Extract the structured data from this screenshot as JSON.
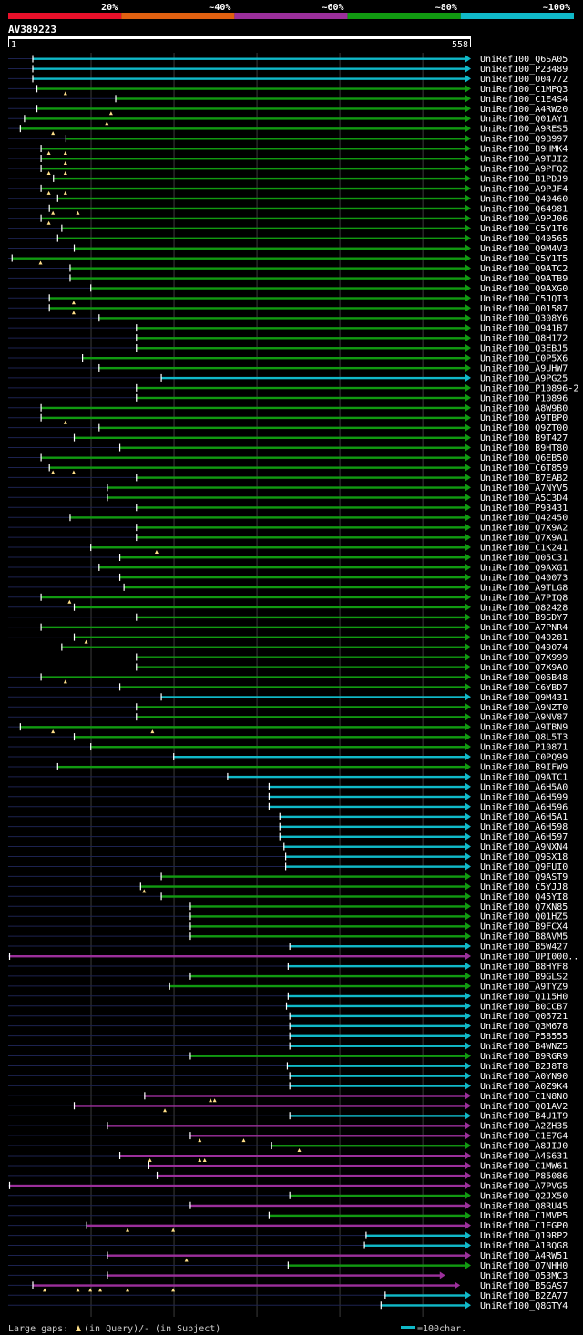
{
  "chart_data": {
    "type": "alignment-overview",
    "query_id": "AV389223",
    "query_start": "1",
    "query_end": "558",
    "query_length": 558,
    "identity_legend": [
      {
        "label": "20%",
        "color": "#e8102a"
      },
      {
        "label": "~40%",
        "color": "#e06010"
      },
      {
        "label": "~60%",
        "color": "#9b2f9b"
      },
      {
        "label": "~80%",
        "color": "#119a11"
      },
      {
        "label": "~100%",
        "color": "#10b9c8"
      }
    ],
    "footer": {
      "gaps_label": "Large gaps:",
      "query_gap_label": "(in Query)/",
      "subject_gap_label": "- (in Subject)",
      "scale_label": "=100char."
    },
    "hits": [
      {
        "id": "UniRef100_Q6SA05",
        "start": 30,
        "end": 558,
        "color": "c",
        "marks": []
      },
      {
        "id": "UniRef100_P23489",
        "start": 30,
        "end": 558,
        "color": "c",
        "marks": []
      },
      {
        "id": "UniRef100_O04772",
        "start": 30,
        "end": 558,
        "color": "c",
        "marks": []
      },
      {
        "id": "UniRef100_C1MPQ3",
        "start": 35,
        "end": 558,
        "color": "g",
        "marks": [
          70
        ]
      },
      {
        "id": "UniRef100_C1E4S4",
        "start": 130,
        "end": 558,
        "color": "g",
        "marks": []
      },
      {
        "id": "UniRef100_A4RW20",
        "start": 35,
        "end": 558,
        "color": "g",
        "marks": [
          125
        ]
      },
      {
        "id": "UniRef100_Q01AY1",
        "start": 20,
        "end": 558,
        "color": "g",
        "marks": [
          120
        ]
      },
      {
        "id": "UniRef100_A9RES5",
        "start": 15,
        "end": 558,
        "color": "g",
        "marks": [
          55
        ]
      },
      {
        "id": "UniRef100_Q9B997",
        "start": 70,
        "end": 558,
        "color": "g",
        "marks": []
      },
      {
        "id": "UniRef100_B9HMK4",
        "start": 40,
        "end": 558,
        "color": "g",
        "marks": [
          50,
          70
        ]
      },
      {
        "id": "UniRef100_A9TJI2",
        "start": 40,
        "end": 558,
        "color": "g",
        "marks": [
          70
        ]
      },
      {
        "id": "UniRef100_A9PFQ2",
        "start": 40,
        "end": 558,
        "color": "g",
        "marks": [
          50,
          70
        ]
      },
      {
        "id": "UniRef100_B1PDJ9",
        "start": 55,
        "end": 558,
        "color": "g",
        "marks": []
      },
      {
        "id": "UniRef100_A9PJF4",
        "start": 40,
        "end": 558,
        "color": "g",
        "marks": [
          50,
          70
        ]
      },
      {
        "id": "UniRef100_Q40460",
        "start": 60,
        "end": 558,
        "color": "g",
        "marks": []
      },
      {
        "id": "UniRef100_Q64981",
        "start": 50,
        "end": 558,
        "color": "g",
        "marks": [
          55,
          85
        ]
      },
      {
        "id": "UniRef100_A9PJ06",
        "start": 40,
        "end": 558,
        "color": "g",
        "marks": [
          50
        ]
      },
      {
        "id": "UniRef100_C5Y1T6",
        "start": 65,
        "end": 558,
        "color": "g",
        "marks": []
      },
      {
        "id": "UniRef100_Q40565",
        "start": 60,
        "end": 558,
        "color": "g",
        "marks": []
      },
      {
        "id": "UniRef100_Q9M4V3",
        "start": 80,
        "end": 558,
        "color": "g",
        "marks": []
      },
      {
        "id": "UniRef100_C5Y1T5",
        "start": 5,
        "end": 558,
        "color": "g",
        "marks": [
          40
        ]
      },
      {
        "id": "UniRef100_Q9ATC2",
        "start": 75,
        "end": 558,
        "color": "g",
        "marks": []
      },
      {
        "id": "UniRef100_Q9ATB9",
        "start": 75,
        "end": 558,
        "color": "g",
        "marks": []
      },
      {
        "id": "UniRef100_Q9AXG0",
        "start": 100,
        "end": 558,
        "color": "g",
        "marks": []
      },
      {
        "id": "UniRef100_C5JQI3",
        "start": 50,
        "end": 558,
        "color": "g",
        "marks": [
          80
        ]
      },
      {
        "id": "UniRef100_Q01587",
        "start": 50,
        "end": 558,
        "color": "g",
        "marks": [
          80
        ]
      },
      {
        "id": "UniRef100_Q308Y6",
        "start": 110,
        "end": 558,
        "color": "g",
        "marks": []
      },
      {
        "id": "UniRef100_Q941B7",
        "start": 155,
        "end": 558,
        "color": "g",
        "marks": []
      },
      {
        "id": "UniRef100_Q8H172",
        "start": 155,
        "end": 558,
        "color": "g",
        "marks": []
      },
      {
        "id": "UniRef100_Q3EBJ5",
        "start": 155,
        "end": 558,
        "color": "g",
        "marks": []
      },
      {
        "id": "UniRef100_C0P5X6",
        "start": 90,
        "end": 558,
        "color": "g",
        "marks": []
      },
      {
        "id": "UniRef100_A9UHW7",
        "start": 110,
        "end": 558,
        "color": "g",
        "marks": []
      },
      {
        "id": "UniRef100_A9PG25",
        "start": 185,
        "end": 558,
        "color": "c",
        "marks": []
      },
      {
        "id": "UniRef100_P10896-2",
        "start": 155,
        "end": 558,
        "color": "g",
        "marks": []
      },
      {
        "id": "UniRef100_P10896",
        "start": 155,
        "end": 558,
        "color": "g",
        "marks": []
      },
      {
        "id": "UniRef100_A8W9B0",
        "start": 40,
        "end": 558,
        "color": "g",
        "marks": []
      },
      {
        "id": "UniRef100_A9TBP0",
        "start": 40,
        "end": 558,
        "color": "g",
        "marks": [
          70
        ]
      },
      {
        "id": "UniRef100_Q9ZT00",
        "start": 110,
        "end": 558,
        "color": "g",
        "marks": []
      },
      {
        "id": "UniRef100_B9T427",
        "start": 80,
        "end": 558,
        "color": "g",
        "marks": []
      },
      {
        "id": "UniRef100_B9HT80",
        "start": 135,
        "end": 558,
        "color": "g",
        "marks": []
      },
      {
        "id": "UniRef100_Q6EB50",
        "start": 40,
        "end": 558,
        "color": "g",
        "marks": []
      },
      {
        "id": "UniRef100_C6T859",
        "start": 50,
        "end": 558,
        "color": "g",
        "marks": [
          55,
          80
        ]
      },
      {
        "id": "UniRef100_B7EAB2",
        "start": 155,
        "end": 558,
        "color": "g",
        "marks": []
      },
      {
        "id": "UniRef100_A7NYV5",
        "start": 120,
        "end": 558,
        "color": "g",
        "marks": []
      },
      {
        "id": "UniRef100_A5C3D4",
        "start": 120,
        "end": 558,
        "color": "g",
        "marks": []
      },
      {
        "id": "UniRef100_P93431",
        "start": 155,
        "end": 558,
        "color": "g",
        "marks": []
      },
      {
        "id": "UniRef100_Q42450",
        "start": 75,
        "end": 558,
        "color": "g",
        "marks": []
      },
      {
        "id": "UniRef100_Q7X9A2",
        "start": 155,
        "end": 558,
        "color": "g",
        "marks": []
      },
      {
        "id": "UniRef100_Q7X9A1",
        "start": 155,
        "end": 558,
        "color": "g",
        "marks": []
      },
      {
        "id": "UniRef100_C1K241",
        "start": 100,
        "end": 558,
        "color": "g",
        "marks": [
          180
        ]
      },
      {
        "id": "UniRef100_Q05C31",
        "start": 135,
        "end": 558,
        "color": "g",
        "marks": []
      },
      {
        "id": "UniRef100_Q9AXG1",
        "start": 110,
        "end": 558,
        "color": "g",
        "marks": []
      },
      {
        "id": "UniRef100_Q40073",
        "start": 135,
        "end": 558,
        "color": "g",
        "marks": []
      },
      {
        "id": "UniRef100_A9TLG8",
        "start": 140,
        "end": 558,
        "color": "g",
        "marks": []
      },
      {
        "id": "UniRef100_A7PIQ8",
        "start": 40,
        "end": 558,
        "color": "g",
        "marks": [
          75
        ]
      },
      {
        "id": "UniRef100_Q82428",
        "start": 80,
        "end": 558,
        "color": "g",
        "marks": []
      },
      {
        "id": "UniRef100_B9SDY7",
        "start": 155,
        "end": 558,
        "color": "g",
        "marks": []
      },
      {
        "id": "UniRef100_A7PNR4",
        "start": 40,
        "end": 558,
        "color": "g",
        "marks": []
      },
      {
        "id": "UniRef100_Q40281",
        "start": 80,
        "end": 558,
        "color": "g",
        "marks": [
          95
        ]
      },
      {
        "id": "UniRef100_Q49074",
        "start": 65,
        "end": 558,
        "color": "g",
        "marks": []
      },
      {
        "id": "UniRef100_Q7X999",
        "start": 155,
        "end": 558,
        "color": "g",
        "marks": []
      },
      {
        "id": "UniRef100_Q7X9A0",
        "start": 155,
        "end": 558,
        "color": "g",
        "marks": []
      },
      {
        "id": "UniRef100_Q06B48",
        "start": 40,
        "end": 558,
        "color": "g",
        "marks": [
          70
        ]
      },
      {
        "id": "UniRef100_C6YBD7",
        "start": 135,
        "end": 558,
        "color": "g",
        "marks": []
      },
      {
        "id": "UniRef100_Q9M431",
        "start": 185,
        "end": 558,
        "color": "c",
        "marks": []
      },
      {
        "id": "UniRef100_A9NZT0",
        "start": 155,
        "end": 558,
        "color": "g",
        "marks": []
      },
      {
        "id": "UniRef100_A9NV87",
        "start": 155,
        "end": 558,
        "color": "g",
        "marks": []
      },
      {
        "id": "UniRef100_A9TBN9",
        "start": 15,
        "end": 558,
        "color": "g",
        "marks": [
          55,
          175
        ]
      },
      {
        "id": "UniRef100_Q8L5T3",
        "start": 80,
        "end": 558,
        "color": "g",
        "marks": []
      },
      {
        "id": "UniRef100_P10871",
        "start": 100,
        "end": 558,
        "color": "g",
        "marks": []
      },
      {
        "id": "UniRef100_C0PQ99",
        "start": 200,
        "end": 558,
        "color": "c",
        "marks": []
      },
      {
        "id": "UniRef100_B9IFW9",
        "start": 60,
        "end": 558,
        "color": "g",
        "marks": []
      },
      {
        "id": "UniRef100_Q9ATC1",
        "start": 265,
        "end": 558,
        "color": "c",
        "marks": []
      },
      {
        "id": "UniRef100_A6H5A0",
        "start": 315,
        "end": 558,
        "color": "c",
        "marks": []
      },
      {
        "id": "UniRef100_A6H599",
        "start": 315,
        "end": 558,
        "color": "c",
        "marks": []
      },
      {
        "id": "UniRef100_A6H596",
        "start": 315,
        "end": 558,
        "color": "c",
        "marks": []
      },
      {
        "id": "UniRef100_A6H5A1",
        "start": 328,
        "end": 558,
        "color": "c",
        "marks": []
      },
      {
        "id": "UniRef100_A6H598",
        "start": 328,
        "end": 558,
        "color": "c",
        "marks": []
      },
      {
        "id": "UniRef100_A6H597",
        "start": 328,
        "end": 558,
        "color": "c",
        "marks": []
      },
      {
        "id": "UniRef100_A9NXN4",
        "start": 333,
        "end": 558,
        "color": "c",
        "marks": []
      },
      {
        "id": "UniRef100_Q9SX18",
        "start": 335,
        "end": 558,
        "color": "c",
        "marks": []
      },
      {
        "id": "UniRef100_Q9FUI0",
        "start": 335,
        "end": 558,
        "color": "c",
        "marks": []
      },
      {
        "id": "UniRef100_Q9AST9",
        "start": 185,
        "end": 558,
        "color": "g",
        "marks": []
      },
      {
        "id": "UniRef100_C5YJJ8",
        "start": 160,
        "end": 558,
        "color": "g",
        "marks": [
          165
        ]
      },
      {
        "id": "UniRef100_Q45YI8",
        "start": 185,
        "end": 558,
        "color": "g",
        "marks": []
      },
      {
        "id": "UniRef100_Q7XN85",
        "start": 220,
        "end": 558,
        "color": "g",
        "marks": []
      },
      {
        "id": "UniRef100_Q01HZ5",
        "start": 220,
        "end": 558,
        "color": "g",
        "marks": []
      },
      {
        "id": "UniRef100_B9FCX4",
        "start": 220,
        "end": 558,
        "color": "g",
        "marks": []
      },
      {
        "id": "UniRef100_B8AVM5",
        "start": 220,
        "end": 558,
        "color": "g",
        "marks": []
      },
      {
        "id": "UniRef100_B5W427",
        "start": 340,
        "end": 558,
        "color": "c",
        "marks": []
      },
      {
        "id": "UniRef100_UPI000..",
        "start": 2,
        "end": 558,
        "color": "p",
        "marks": []
      },
      {
        "id": "UniRef100_B8HYF8",
        "start": 338,
        "end": 558,
        "color": "c",
        "marks": []
      },
      {
        "id": "UniRef100_B9GLS2",
        "start": 220,
        "end": 558,
        "color": "g",
        "marks": []
      },
      {
        "id": "UniRef100_A9TYZ9",
        "start": 195,
        "end": 558,
        "color": "g",
        "marks": []
      },
      {
        "id": "UniRef100_Q115H0",
        "start": 338,
        "end": 558,
        "color": "c",
        "marks": []
      },
      {
        "id": "UniRef100_B0CCB7",
        "start": 336,
        "end": 558,
        "color": "c",
        "marks": []
      },
      {
        "id": "UniRef100_Q06721",
        "start": 340,
        "end": 558,
        "color": "c",
        "marks": []
      },
      {
        "id": "UniRef100_Q3M678",
        "start": 340,
        "end": 558,
        "color": "c",
        "marks": []
      },
      {
        "id": "UniRef100_P58555",
        "start": 340,
        "end": 558,
        "color": "c",
        "marks": []
      },
      {
        "id": "UniRef100_B4WNZ5",
        "start": 340,
        "end": 558,
        "color": "c",
        "marks": []
      },
      {
        "id": "UniRef100_B9RGR9",
        "start": 220,
        "end": 558,
        "color": "g",
        "marks": []
      },
      {
        "id": "UniRef100_B2J8T8",
        "start": 337,
        "end": 558,
        "color": "c",
        "marks": []
      },
      {
        "id": "UniRef100_A0YN90",
        "start": 340,
        "end": 558,
        "color": "c",
        "marks": []
      },
      {
        "id": "UniRef100_A0Z9K4",
        "start": 340,
        "end": 558,
        "color": "c",
        "marks": []
      },
      {
        "id": "UniRef100_C1N8N0",
        "start": 165,
        "end": 558,
        "color": "p",
        "marks": [
          245,
          250
        ]
      },
      {
        "id": "UniRef100_Q01AV2",
        "start": 80,
        "end": 558,
        "color": "p",
        "marks": [
          190
        ]
      },
      {
        "id": "UniRef100_B4U1T9",
        "start": 340,
        "end": 558,
        "color": "c",
        "marks": []
      },
      {
        "id": "UniRef100_A2ZH35",
        "start": 120,
        "end": 558,
        "color": "p",
        "marks": []
      },
      {
        "id": "UniRef100_C1E7G4",
        "start": 220,
        "end": 558,
        "color": "p",
        "marks": [
          232,
          285
        ]
      },
      {
        "id": "UniRef100_A8JIJ0",
        "start": 318,
        "end": 558,
        "color": "g",
        "marks": [
          352
        ]
      },
      {
        "id": "UniRef100_A4S631",
        "start": 135,
        "end": 558,
        "color": "p",
        "marks": [
          172,
          232,
          238
        ]
      },
      {
        "id": "UniRef100_C1MW61",
        "start": 170,
        "end": 558,
        "color": "p",
        "marks": []
      },
      {
        "id": "UniRef100_P85086",
        "start": 180,
        "end": 558,
        "color": "p",
        "marks": []
      },
      {
        "id": "UniRef100_A7PVG5",
        "start": 2,
        "end": 558,
        "color": "p",
        "marks": []
      },
      {
        "id": "UniRef100_Q2JX50",
        "start": 340,
        "end": 558,
        "color": "g",
        "marks": []
      },
      {
        "id": "UniRef100_Q8RU45",
        "start": 220,
        "end": 558,
        "color": "p",
        "marks": []
      },
      {
        "id": "UniRef100_C1MVP5",
        "start": 315,
        "end": 558,
        "color": "g",
        "marks": []
      },
      {
        "id": "UniRef100_C1EGP0",
        "start": 95,
        "end": 558,
        "color": "p",
        "marks": [
          145,
          200
        ]
      },
      {
        "id": "UniRef100_Q19RP2",
        "start": 432,
        "end": 558,
        "color": "c",
        "marks": []
      },
      {
        "id": "UniRef100_A1BQG8",
        "start": 430,
        "end": 558,
        "color": "c",
        "marks": []
      },
      {
        "id": "UniRef100_A4RW51",
        "start": 120,
        "end": 558,
        "color": "p",
        "marks": [
          216
        ]
      },
      {
        "id": "UniRef100_Q7NHH0",
        "start": 338,
        "end": 558,
        "color": "g",
        "marks": []
      },
      {
        "id": "UniRef100_Q53MC3",
        "start": 120,
        "end": 527,
        "color": "p",
        "marks": []
      },
      {
        "id": "UniRef100_B5GAS7",
        "start": 30,
        "end": 545,
        "color": "p",
        "marks": [
          45,
          85,
          100,
          112,
          145,
          200
        ]
      },
      {
        "id": "UniRef100_B2ZA77",
        "start": 455,
        "end": 558,
        "color": "c",
        "marks": []
      },
      {
        "id": "UniRef100_Q8GTY4",
        "start": 450,
        "end": 558,
        "color": "c",
        "marks": []
      }
    ]
  }
}
